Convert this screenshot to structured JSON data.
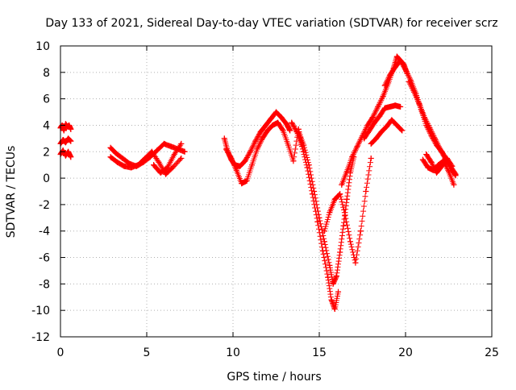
{
  "chart_data": {
    "type": "scatter",
    "title": "Day 133 of 2021, Sidereal Day-to-day VTEC variation (SDTVAR) for receiver scrz",
    "xlabel": "GPS time / hours",
    "ylabel": "SDTVAR / TECUs",
    "xlim": [
      0,
      25
    ],
    "ylim": [
      -12,
      10
    ],
    "xticks": [
      0,
      5,
      10,
      15,
      20,
      25
    ],
    "yticks": [
      -12,
      -10,
      -8,
      -6,
      -4,
      -2,
      0,
      2,
      4,
      6,
      8,
      10
    ],
    "grid": true,
    "marker": "+",
    "color": "#ff0000",
    "series": [
      {
        "x": [
          0.0,
          0.1,
          0.2,
          0.3,
          0.4,
          0.5,
          0.6
        ],
        "y": [
          3.8,
          4.0,
          3.6,
          4.1,
          3.9,
          4.0,
          3.7
        ]
      },
      {
        "x": [
          0.0,
          0.15,
          0.3,
          0.45,
          0.6
        ],
        "y": [
          2.6,
          2.9,
          2.7,
          3.0,
          2.8
        ]
      },
      {
        "x": [
          0.0,
          0.15,
          0.3,
          0.45,
          0.6
        ],
        "y": [
          1.8,
          2.1,
          1.7,
          2.0,
          1.6
        ]
      },
      {
        "x": [
          2.9,
          3.2,
          3.6,
          4.0,
          4.4,
          4.8,
          5.2,
          5.6,
          6.0,
          6.4,
          6.8,
          7.2
        ],
        "y": [
          2.3,
          1.9,
          1.5,
          1.1,
          0.9,
          1.2,
          1.6,
          2.1,
          2.6,
          2.4,
          2.2,
          2.0
        ]
      },
      {
        "x": [
          2.9,
          3.3,
          3.7,
          4.1,
          4.5,
          4.9,
          5.3,
          5.7,
          6.1,
          6.5,
          7.0
        ],
        "y": [
          1.6,
          1.2,
          0.9,
          0.8,
          1.0,
          1.5,
          2.0,
          1.2,
          0.3,
          0.8,
          1.5
        ]
      },
      {
        "x": [
          5.4,
          5.8,
          6.2,
          6.6,
          7.0
        ],
        "y": [
          1.0,
          0.4,
          0.8,
          1.8,
          2.6
        ]
      },
      {
        "x": [
          9.5,
          9.7,
          9.9,
          10.1,
          10.4,
          10.7,
          11.0,
          11.3,
          11.6,
          11.9,
          12.2,
          12.5,
          12.8,
          13.1,
          13.3
        ],
        "y": [
          3.0,
          2.0,
          1.4,
          1.0,
          0.9,
          1.3,
          2.0,
          2.8,
          3.5,
          4.0,
          4.5,
          5.0,
          4.6,
          4.1,
          3.6
        ]
      },
      {
        "x": [
          9.6,
          9.9,
          10.2,
          10.5,
          10.8,
          11.1,
          11.4,
          11.7,
          12.0,
          12.3,
          12.6,
          12.9,
          13.2,
          13.5,
          13.8,
          14.1
        ],
        "y": [
          2.2,
          1.5,
          0.6,
          -0.4,
          -0.2,
          1.0,
          2.2,
          3.0,
          3.6,
          4.0,
          4.2,
          3.6,
          2.5,
          1.3,
          3.7,
          2.0
        ]
      },
      {
        "x": [
          13.4,
          13.7,
          14.0,
          14.3,
          14.6,
          14.9,
          15.2,
          15.5,
          15.7,
          15.9,
          16.1
        ],
        "y": [
          4.2,
          3.5,
          2.4,
          0.8,
          -1.2,
          -3.3,
          -5.5,
          -7.5,
          -9.2,
          -9.9,
          -8.6
        ]
      },
      {
        "x": [
          13.8,
          14.1,
          14.4,
          14.7,
          15.0,
          15.3,
          15.6,
          15.8,
          16.0,
          16.2,
          16.4,
          16.6,
          16.8,
          17.0
        ],
        "y": [
          3.5,
          2.5,
          1.0,
          -1.0,
          -3.0,
          -4.8,
          -6.6,
          -8.0,
          -7.4,
          -5.6,
          -3.6,
          -1.6,
          0.4,
          1.6
        ]
      },
      {
        "x": [
          15.3,
          15.6,
          15.9,
          16.2,
          16.5,
          16.8,
          17.1,
          17.4,
          17.7,
          18.0
        ],
        "y": [
          -4.0,
          -2.6,
          -1.6,
          -1.2,
          -2.8,
          -4.8,
          -6.4,
          -4.0,
          -1.0,
          1.5
        ]
      },
      {
        "x": [
          16.3,
          16.6,
          16.9,
          17.2,
          17.5,
          17.8,
          18.1,
          18.4,
          18.7,
          19.0,
          19.3,
          19.5,
          19.7,
          19.9,
          20.1
        ],
        "y": [
          -0.5,
          0.5,
          1.6,
          2.4,
          3.2,
          4.0,
          4.6,
          5.4,
          6.2,
          7.2,
          8.3,
          9.2,
          8.9,
          8.6,
          7.9
        ]
      },
      {
        "x": [
          17.6,
          17.9,
          18.2,
          18.5,
          18.8,
          19.1,
          19.4,
          19.7
        ],
        "y": [
          3.0,
          3.6,
          4.2,
          4.7,
          5.3,
          5.4,
          5.5,
          5.4
        ]
      },
      {
        "x": [
          18.0,
          18.3,
          18.6,
          18.9,
          19.2,
          19.5,
          19.8
        ],
        "y": [
          2.6,
          3.0,
          3.5,
          3.9,
          4.4,
          4.0,
          3.6
        ]
      },
      {
        "x": [
          18.8,
          19.1,
          19.4,
          19.7,
          20.0,
          20.3,
          20.6,
          20.9,
          21.2,
          21.5,
          21.8,
          22.1,
          22.4,
          22.7,
          22.9
        ],
        "y": [
          7.0,
          7.8,
          8.4,
          8.9,
          8.2,
          7.4,
          6.4,
          5.2,
          4.0,
          3.2,
          2.5,
          2.0,
          1.4,
          0.6,
          0.2
        ]
      },
      {
        "x": [
          20.2,
          20.5,
          20.8,
          21.1,
          21.4,
          21.7,
          22.0,
          22.3,
          22.6,
          22.9
        ],
        "y": [
          7.3,
          6.5,
          5.6,
          4.6,
          3.8,
          3.0,
          2.2,
          1.5,
          0.9,
          0.3
        ]
      },
      {
        "x": [
          21.0,
          21.3,
          21.6,
          21.9,
          22.2,
          22.5,
          22.8
        ],
        "y": [
          1.4,
          0.8,
          0.6,
          1.0,
          1.3,
          0.5,
          -0.5
        ]
      },
      {
        "x": [
          21.2,
          21.5,
          21.8,
          22.1,
          22.4,
          22.7
        ],
        "y": [
          1.8,
          1.2,
          0.4,
          0.9,
          1.5,
          0.9
        ]
      }
    ]
  }
}
